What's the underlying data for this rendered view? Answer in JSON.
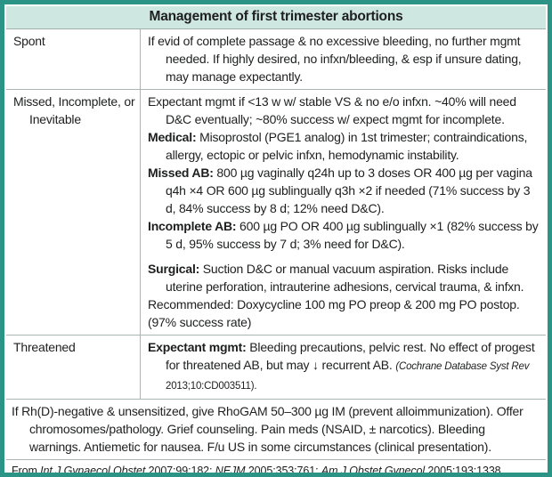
{
  "title": "Management of first trimester abortions",
  "colors": {
    "frame_teal": "#2b9486",
    "header_mint": "#cfe7e1",
    "grid_line": "#a9b6b2"
  },
  "rows": [
    {
      "label": "Spont",
      "paragraphs": [
        {
          "runs": [
            {
              "s": "n",
              "t": "If evid of complete passage & no excessive bleeding, no further mgmt needed. If highly desired, no infxn/bleeding, & esp if unsure dating, may manage expectantly."
            }
          ]
        }
      ]
    },
    {
      "label": "Missed, Incomplete, or Inevitable",
      "paragraphs": [
        {
          "runs": [
            {
              "s": "n",
              "t": "Expectant mgmt if <13 w w/ stable VS & no e/o infxn. ~40% will need D&C eventually; ~80% success w/ expect mgmt for incomplete."
            }
          ]
        },
        {
          "runs": [
            {
              "s": "b",
              "t": "Medical:"
            },
            {
              "s": "n",
              "t": " Misoprostol (PGE1 analog) in 1st trimester; contraindications, allergy, ectopic or pelvic infxn, hemodynamic instability."
            }
          ]
        },
        {
          "runs": [
            {
              "s": "b",
              "t": "Missed AB:"
            },
            {
              "s": "n",
              "t": " 800 µg vaginally q24h up to 3 doses OR 400 µg per vagina q4h ×4 OR 600 µg sublingually q3h ×2 if needed (71% success by 3 d, 84% success by 8 d; 12% need D&C)."
            }
          ]
        },
        {
          "runs": [
            {
              "s": "b",
              "t": "Incomplete AB:"
            },
            {
              "s": "n",
              "t": " 600 µg PO OR 400 µg sublingually ×1 (82% success by 5 d, 95% success by 7 d; 3% need for D&C)."
            }
          ]
        },
        {
          "runs": [
            {
              "s": "b",
              "t": "Surgical:"
            },
            {
              "s": "n",
              "t": " Suction D&C or manual vacuum aspiration. Risks include uterine perforation, intrauterine adhesions, cervical trauma, & infxn."
            }
          ]
        },
        {
          "runs": [
            {
              "s": "n",
              "t": "Recommended: Doxycycline 100 mg PO preop & 200 mg PO postop. (97% success rate)"
            }
          ]
        }
      ]
    },
    {
      "label": "Threatened",
      "paragraphs": [
        {
          "runs": [
            {
              "s": "b",
              "t": "Expectant mgmt:"
            },
            {
              "s": "n",
              "t": " Bleeding precautions, pelvic rest. No effect of progest for threatened AB, but may ↓ recurrent AB. "
            },
            {
              "s": "ci",
              "t": "(Cochrane Database Syst Rev "
            },
            {
              "s": "cn",
              "t": "2013;10:CD003511)."
            }
          ]
        }
      ]
    }
  ],
  "footnote": {
    "runs": [
      {
        "s": "n",
        "t": "If Rh(D)-negative & unsensitized, give RhoGAM 50–300 µg IM (prevent alloimmunization). Offer chromosomes/pathology. Grief counseling. Pain meds (NSAID, ± narcotics). Bleeding warnings. Antiemetic for nausea. F/u US in some circumstances (clinical presentation)."
      }
    ]
  },
  "source": {
    "runs": [
      {
        "s": "n",
        "t": "From "
      },
      {
        "s": "i",
        "t": "Int J Gynaecol Obstet "
      },
      {
        "s": "n",
        "t": "2007;99:182; "
      },
      {
        "s": "i",
        "t": "NEJM "
      },
      {
        "s": "n",
        "t": "2005;353:761; "
      },
      {
        "s": "i",
        "t": "Am J Obstet Gynecol "
      },
      {
        "s": "n",
        "t": "2005;193:1338."
      }
    ]
  }
}
